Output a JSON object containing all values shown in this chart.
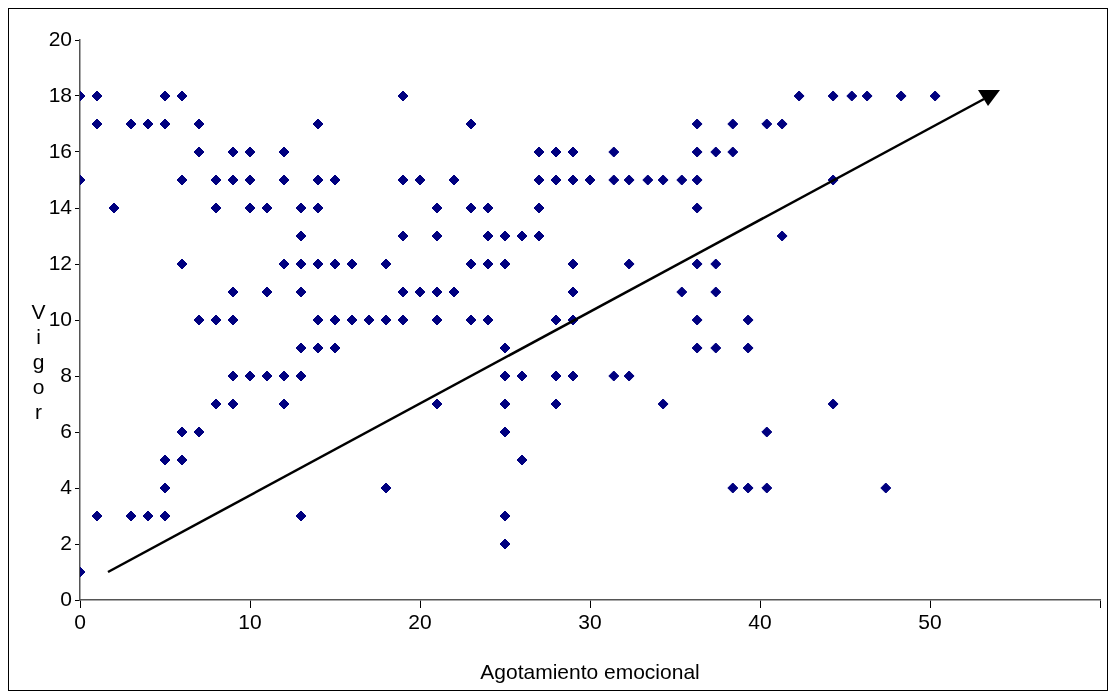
{
  "chart_data": {
    "type": "scatter",
    "xlabel": "Agotamiento emocional",
    "ylabel": "Vigor",
    "xlim": [
      0,
      60
    ],
    "xticks": [
      0,
      10,
      20,
      30,
      40,
      50,
      {
        "value": 60,
        "label": null
      }
    ],
    "ylim": [
      0,
      20
    ],
    "yticks": [
      0,
      2,
      4,
      6,
      8,
      10,
      12,
      14,
      16,
      18,
      20
    ],
    "grid": false,
    "legend": false,
    "marker": "diamond",
    "series": [
      {
        "color": "#000080",
        "x": [
          0,
          1,
          5,
          6,
          19,
          42.3,
          44.3,
          45.4,
          46.3,
          48.3,
          50.3,
          1,
          3,
          4,
          5,
          7,
          14,
          23,
          36.3,
          38.4,
          40.4,
          41.3,
          7,
          9,
          10,
          12,
          27,
          28,
          29,
          31.4,
          36.3,
          37.4,
          38.4,
          0,
          6,
          8,
          9,
          10,
          12,
          14,
          15,
          19,
          20,
          22,
          27,
          28,
          29,
          30,
          31.4,
          32.3,
          33.4,
          34.3,
          35.4,
          36.3,
          44.3,
          2,
          8,
          10,
          11,
          13,
          14,
          21,
          23,
          24,
          27,
          36.3,
          13,
          19,
          21,
          24,
          25,
          26,
          27,
          41.3,
          6,
          12,
          13,
          14,
          15,
          16,
          18,
          23,
          24,
          25,
          29,
          32.3,
          36.3,
          37.4,
          9,
          11,
          13,
          19,
          20,
          21,
          22,
          29,
          35.4,
          37.4,
          7,
          8,
          9,
          14,
          15,
          16,
          17,
          18,
          19,
          21,
          23,
          24,
          28,
          29,
          36.3,
          39.3,
          13,
          14,
          15,
          25,
          36.3,
          37.4,
          39.3,
          9,
          10,
          11,
          12,
          13,
          25,
          26,
          28,
          29,
          31.4,
          32.3,
          8,
          9,
          12,
          21,
          25,
          28,
          34.3,
          44.3,
          6,
          7,
          25,
          40.4,
          5,
          6,
          26,
          5,
          18,
          38.4,
          39.3,
          40.4,
          47.4,
          1,
          3,
          4,
          5,
          13,
          25,
          25,
          0
        ],
        "values": [
          18,
          18,
          18,
          18,
          18,
          18,
          18,
          18,
          18,
          18,
          18,
          17,
          17,
          17,
          17,
          17,
          17,
          17,
          17,
          17,
          17,
          17,
          16,
          16,
          16,
          16,
          16,
          16,
          16,
          16,
          16,
          16,
          16,
          15,
          15,
          15,
          15,
          15,
          15,
          15,
          15,
          15,
          15,
          15,
          15,
          15,
          15,
          15,
          15,
          15,
          15,
          15,
          15,
          15,
          15,
          14,
          14,
          14,
          14,
          14,
          14,
          14,
          14,
          14,
          14,
          14,
          13,
          13,
          13,
          13,
          13,
          13,
          13,
          13,
          12,
          12,
          12,
          12,
          12,
          12,
          12,
          12,
          12,
          12,
          12,
          12,
          12,
          12,
          11,
          11,
          11,
          11,
          11,
          11,
          11,
          11,
          11,
          11,
          10,
          10,
          10,
          10,
          10,
          10,
          10,
          10,
          10,
          10,
          10,
          10,
          10,
          10,
          10,
          10,
          9,
          9,
          9,
          9,
          9,
          9,
          9,
          8,
          8,
          8,
          8,
          8,
          8,
          8,
          8,
          8,
          8,
          8,
          7,
          7,
          7,
          7,
          7,
          7,
          7,
          7,
          6,
          6,
          6,
          6,
          5,
          5,
          5,
          4,
          4,
          4,
          4,
          4,
          4,
          3,
          3,
          3,
          3,
          3,
          3,
          2,
          1
        ]
      }
    ]
  }
}
